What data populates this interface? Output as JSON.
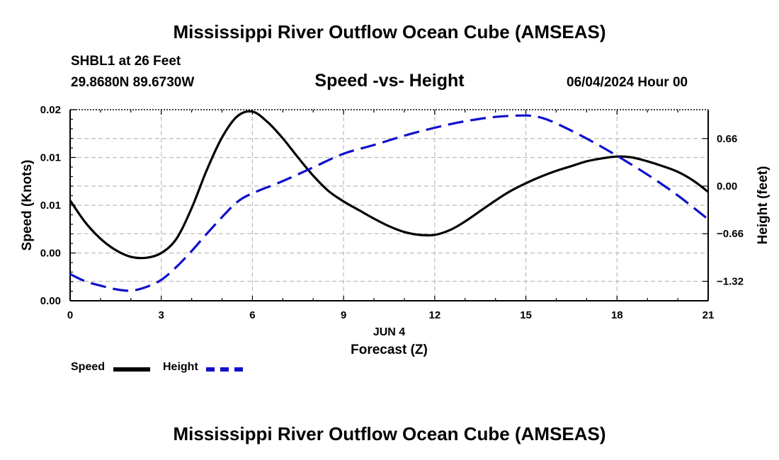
{
  "header": {
    "title": "Mississippi River Outflow Ocean Cube (AMSEAS)",
    "station": "SHBL1 at 26 Feet",
    "coords": "29.8680N  89.6730W",
    "subtitle": "Speed -vs- Height",
    "datetime": "06/04/2024 Hour 00"
  },
  "footer": {
    "title": "Mississippi River Outflow Ocean Cube (AMSEAS)"
  },
  "legend": {
    "speed_label": "Speed",
    "height_label": "Height"
  },
  "colors": {
    "speed": "#000000",
    "height": "#1010cc",
    "grid": "#bbbbbb"
  },
  "chart_data": {
    "type": "line",
    "xlabel": "Forecast (Z)",
    "date_label": "JUN 4",
    "ylabel_left": "Speed (Knots)",
    "ylabel_right": "Height (feet)",
    "xlim": [
      0,
      21
    ],
    "x_ticks": [
      0,
      3,
      6,
      9,
      12,
      15,
      18,
      21
    ],
    "x_tick_labels": [
      "0",
      "3",
      "6",
      "9",
      "12",
      "15",
      "18",
      "21"
    ],
    "ylim_left": [
      0,
      0.02
    ],
    "left_ticks": [
      0,
      0.005,
      0.01,
      0.015,
      0.02
    ],
    "left_tick_labels": [
      "0.00",
      "0.00",
      "0.01",
      "0.01",
      "0.02"
    ],
    "ylim_right": [
      -1.59,
      1.06
    ],
    "right_ticks": [
      0.66,
      0.0,
      -0.66,
      -1.32
    ],
    "right_tick_labels": [
      "0.66",
      "0.00",
      "−0.66",
      "−1.32"
    ],
    "series": [
      {
        "name": "Speed",
        "axis": "left",
        "style": "solid",
        "x": [
          0,
          0.5,
          1,
          1.5,
          2,
          2.5,
          3,
          3.5,
          4,
          4.5,
          5,
          5.5,
          6,
          6.5,
          7,
          7.5,
          8,
          8.5,
          9,
          9.5,
          10,
          10.5,
          11,
          11.5,
          12,
          12.5,
          13,
          13.5,
          14,
          14.5,
          15,
          15.5,
          16,
          16.5,
          17,
          17.5,
          18,
          18.5,
          19,
          19.5,
          20,
          20.5,
          21
        ],
        "y": [
          0.0105,
          0.0082,
          0.0065,
          0.0053,
          0.0046,
          0.0045,
          0.005,
          0.0065,
          0.0097,
          0.0137,
          0.0171,
          0.0193,
          0.0198,
          0.0187,
          0.017,
          0.015,
          0.0131,
          0.0115,
          0.0104,
          0.0095,
          0.0086,
          0.0078,
          0.0072,
          0.0069,
          0.0069,
          0.0074,
          0.0083,
          0.0094,
          0.0105,
          0.0115,
          0.0123,
          0.013,
          0.0136,
          0.0141,
          0.0146,
          0.0149,
          0.0151,
          0.015,
          0.0146,
          0.0141,
          0.0135,
          0.0126,
          0.0114
        ]
      },
      {
        "name": "Height",
        "axis": "right",
        "style": "dashed",
        "x": [
          0,
          0.5,
          1,
          1.5,
          2,
          2.5,
          3,
          3.5,
          4,
          4.5,
          5,
          5.5,
          6,
          7,
          8,
          9,
          10,
          11,
          12,
          13,
          14,
          15,
          15.5,
          16,
          17,
          18,
          19,
          20,
          21
        ],
        "y": [
          -1.22,
          -1.32,
          -1.38,
          -1.43,
          -1.45,
          -1.4,
          -1.3,
          -1.12,
          -0.9,
          -0.66,
          -0.43,
          -0.22,
          -0.1,
          0.07,
          0.26,
          0.45,
          0.57,
          0.7,
          0.81,
          0.9,
          0.96,
          0.98,
          0.95,
          0.87,
          0.66,
          0.42,
          0.16,
          -0.13,
          -0.46
        ]
      }
    ]
  }
}
